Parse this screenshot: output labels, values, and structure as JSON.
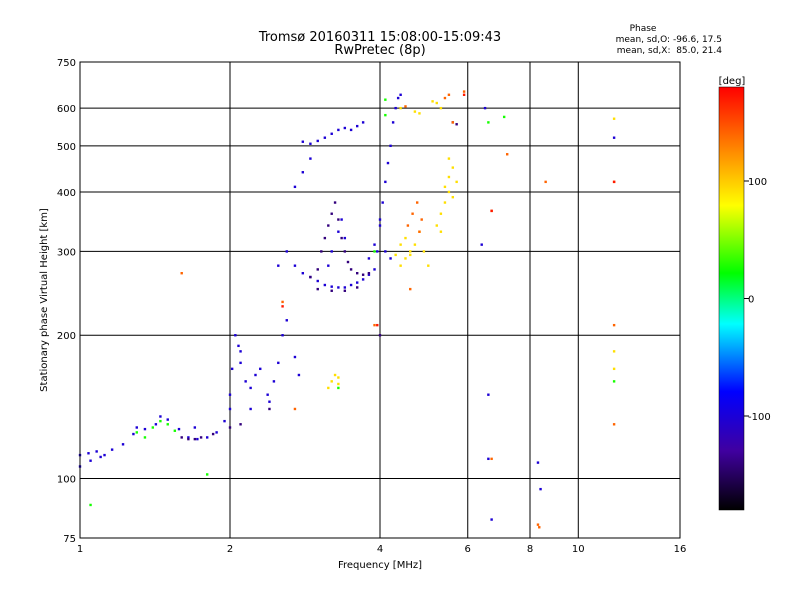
{
  "chart_data": {
    "type": "scatter",
    "title": "Tromsø 20160311 15:08:00-15:09:43",
    "subtitle": "RwPretec (8p)",
    "xlabel": "Frequency [MHz]",
    "ylabel": "Stationary phase Virtual Height [km]",
    "x_scale": "log",
    "y_scale": "log",
    "xlim": [
      1,
      16
    ],
    "ylim": [
      75,
      750
    ],
    "x_ticks": [
      1,
      2,
      4,
      6,
      8,
      10,
      16
    ],
    "x_tick_labels": [
      "1",
      "2",
      "4",
      "6",
      "8",
      "10",
      "16"
    ],
    "y_ticks": [
      75,
      100,
      200,
      300,
      400,
      500,
      600,
      750
    ],
    "y_tick_labels": [
      "75",
      "100",
      "200",
      "300",
      "400",
      "500",
      "600",
      "750"
    ],
    "grid": true,
    "phase_stats": {
      "heading": "Phase",
      "line_o": "mean, sd,O: -96.6, 17.5",
      "line_x": "mean, sd,X:  85.0, 21.4"
    },
    "colorbar": {
      "label": "[deg]",
      "range": [
        -180,
        180
      ],
      "ticks": [
        100,
        0,
        -100
      ],
      "tick_labels": [
        "100",
        "0",
        "-100"
      ],
      "colors": [
        "#ff0000",
        "#ff8000",
        "#ffff00",
        "#00ff00",
        "#00ffff",
        "#0000ff",
        "#4000a0",
        "#000000"
      ]
    },
    "series": [
      {
        "phase": -100,
        "points": [
          [
            1.0,
            112
          ],
          [
            1.04,
            113
          ],
          [
            1.08,
            114
          ],
          [
            1.12,
            112
          ],
          [
            1.16,
            115
          ],
          [
            1.22,
            118
          ],
          [
            1.28,
            124
          ],
          [
            1.35,
            127
          ],
          [
            1.42,
            130
          ],
          [
            1.5,
            133
          ],
          [
            1.58,
            127
          ],
          [
            1.65,
            122
          ],
          [
            1.72,
            121
          ],
          [
            1.8,
            122
          ],
          [
            1.88,
            125
          ],
          [
            1.95,
            132
          ],
          [
            2.0,
            140
          ],
          [
            2.02,
            170
          ],
          [
            2.05,
            200
          ],
          [
            2.08,
            190
          ],
          [
            2.1,
            175
          ],
          [
            2.15,
            160
          ],
          [
            2.2,
            155
          ],
          [
            2.25,
            165
          ],
          [
            2.3,
            170
          ],
          [
            2.38,
            150
          ],
          [
            2.45,
            160
          ],
          [
            2.5,
            175
          ],
          [
            2.55,
            200
          ],
          [
            2.6,
            215
          ],
          [
            2.7,
            180
          ],
          [
            2.75,
            165
          ],
          [
            2.5,
            280
          ],
          [
            2.6,
            300
          ],
          [
            2.7,
            280
          ],
          [
            2.8,
            270
          ],
          [
            2.9,
            265
          ],
          [
            3.0,
            260
          ],
          [
            3.1,
            255
          ],
          [
            3.2,
            253
          ],
          [
            3.3,
            252
          ],
          [
            3.4,
            252
          ],
          [
            3.5,
            255
          ],
          [
            3.6,
            258
          ],
          [
            3.7,
            262
          ],
          [
            3.8,
            268
          ],
          [
            3.9,
            275
          ],
          [
            3.95,
            300
          ],
          [
            4.0,
            340
          ],
          [
            4.05,
            380
          ],
          [
            4.1,
            420
          ],
          [
            4.15,
            460
          ],
          [
            4.2,
            500
          ],
          [
            4.25,
            560
          ],
          [
            4.3,
            600
          ],
          [
            4.35,
            630
          ],
          [
            4.4,
            640
          ],
          [
            3.8,
            290
          ],
          [
            3.9,
            310
          ],
          [
            4.0,
            350
          ],
          [
            4.1,
            300
          ],
          [
            4.2,
            290
          ],
          [
            2.8,
            510
          ],
          [
            2.9,
            505
          ],
          [
            3.0,
            512
          ],
          [
            3.1,
            520
          ],
          [
            3.2,
            530
          ],
          [
            3.3,
            540
          ],
          [
            3.4,
            545
          ],
          [
            3.5,
            540
          ],
          [
            3.6,
            550
          ],
          [
            3.7,
            560
          ],
          [
            2.7,
            410
          ],
          [
            2.8,
            440
          ],
          [
            2.9,
            470
          ],
          [
            3.2,
            300
          ],
          [
            3.3,
            330
          ],
          [
            3.35,
            350
          ],
          [
            3.4,
            320
          ],
          [
            3.15,
            280
          ],
          [
            1.0,
            106
          ],
          [
            1.05,
            109
          ],
          [
            1.1,
            111
          ],
          [
            1.3,
            128
          ],
          [
            1.45,
            135
          ],
          [
            1.7,
            128
          ],
          [
            2.0,
            150
          ],
          [
            2.1,
            185
          ],
          [
            2.2,
            140
          ],
          [
            2.4,
            145
          ],
          [
            6.5,
            600
          ],
          [
            6.4,
            310
          ],
          [
            6.6,
            110
          ],
          [
            6.7,
            82
          ],
          [
            8.3,
            108
          ],
          [
            8.4,
            95
          ],
          [
            11.8,
            520
          ],
          [
            6.6,
            150
          ]
        ]
      },
      {
        "phase": -140,
        "points": [
          [
            1.6,
            122
          ],
          [
            1.65,
            121
          ],
          [
            1.7,
            121
          ],
          [
            1.75,
            122
          ],
          [
            1.85,
            124
          ],
          [
            2.0,
            128
          ],
          [
            2.1,
            130
          ],
          [
            2.4,
            140
          ],
          [
            2.9,
            265
          ],
          [
            3.0,
            275
          ],
          [
            3.05,
            300
          ],
          [
            3.1,
            320
          ],
          [
            3.15,
            340
          ],
          [
            3.2,
            360
          ],
          [
            3.25,
            380
          ],
          [
            3.3,
            350
          ],
          [
            3.35,
            320
          ],
          [
            3.4,
            300
          ],
          [
            3.45,
            285
          ],
          [
            3.5,
            275
          ],
          [
            3.6,
            270
          ],
          [
            3.7,
            268
          ],
          [
            3.8,
            270
          ],
          [
            3.0,
            250
          ],
          [
            3.2,
            248
          ],
          [
            3.4,
            248
          ],
          [
            3.6,
            252
          ],
          [
            5.6,
            560
          ],
          [
            5.7,
            555
          ],
          [
            4.0,
            200
          ]
        ]
      },
      {
        "phase": 90,
        "points": [
          [
            4.4,
            280
          ],
          [
            4.5,
            290
          ],
          [
            4.6,
            300
          ],
          [
            4.7,
            310
          ],
          [
            4.8,
            330
          ],
          [
            4.9,
            300
          ],
          [
            4.5,
            320
          ],
          [
            4.6,
            295
          ],
          [
            5.0,
            280
          ],
          [
            4.4,
            600
          ],
          [
            4.7,
            590
          ],
          [
            4.8,
            585
          ],
          [
            5.1,
            620
          ],
          [
            5.2,
            615
          ],
          [
            5.3,
            600
          ],
          [
            5.5,
            400
          ],
          [
            5.4,
            380
          ],
          [
            5.3,
            360
          ],
          [
            5.2,
            340
          ],
          [
            5.5,
            430
          ],
          [
            5.6,
            450
          ],
          [
            5.5,
            470
          ],
          [
            5.7,
            420
          ],
          [
            5.6,
            390
          ],
          [
            5.4,
            410
          ],
          [
            5.3,
            330
          ],
          [
            3.2,
            160
          ],
          [
            3.25,
            165
          ],
          [
            3.3,
            158
          ],
          [
            3.15,
            155
          ],
          [
            3.3,
            163
          ],
          [
            11.8,
            570
          ],
          [
            11.8,
            185
          ],
          [
            11.8,
            170
          ],
          [
            4.3,
            295
          ],
          [
            4.4,
            310
          ]
        ]
      },
      {
        "phase": 140,
        "points": [
          [
            4.55,
            340
          ],
          [
            4.65,
            360
          ],
          [
            4.75,
            380
          ],
          [
            4.85,
            350
          ],
          [
            4.8,
            330
          ],
          [
            5.4,
            630
          ],
          [
            5.5,
            640
          ],
          [
            5.6,
            560
          ],
          [
            5.9,
            650
          ],
          [
            4.6,
            250
          ],
          [
            2.55,
            235
          ],
          [
            11.8,
            210
          ],
          [
            11.8,
            420
          ],
          [
            8.6,
            420
          ],
          [
            8.3,
            80
          ],
          [
            8.35,
            79
          ],
          [
            6.7,
            365
          ],
          [
            2.7,
            140
          ],
          [
            1.6,
            270
          ],
          [
            4.5,
            605
          ],
          [
            7.2,
            480
          ],
          [
            11.8,
            130
          ],
          [
            6.7,
            110
          ],
          [
            3.9,
            210
          ]
        ]
      },
      {
        "phase": 30,
        "points": [
          [
            1.3,
            125
          ],
          [
            1.35,
            122
          ],
          [
            1.4,
            128
          ],
          [
            1.5,
            130
          ],
          [
            1.55,
            126
          ],
          [
            1.45,
            132
          ],
          [
            7.1,
            575
          ],
          [
            6.6,
            560
          ],
          [
            4.1,
            580
          ],
          [
            11.8,
            160
          ],
          [
            1.05,
            88
          ],
          [
            1.8,
            102
          ],
          [
            3.9,
            300
          ],
          [
            3.3,
            155
          ],
          [
            4.1,
            625
          ]
        ]
      },
      {
        "phase": 170,
        "points": [
          [
            5.9,
            640
          ],
          [
            2.55,
            230
          ],
          [
            11.8,
            420
          ],
          [
            6.7,
            365
          ],
          [
            3.95,
            210
          ]
        ]
      }
    ]
  }
}
